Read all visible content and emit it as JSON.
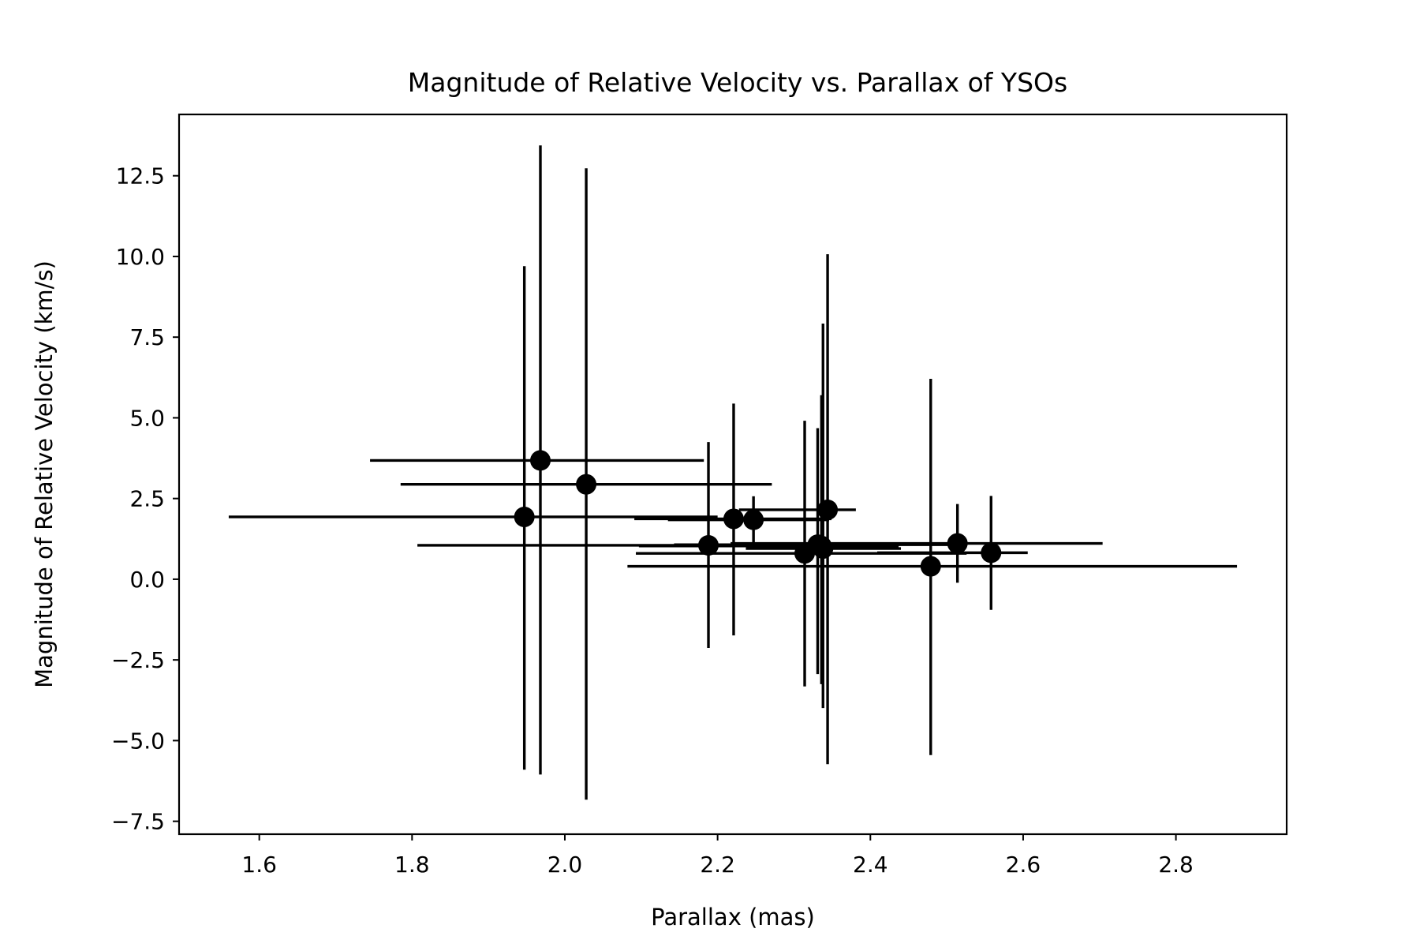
{
  "chart_data": {
    "type": "scatter",
    "title": "Magnitude of Relative Velocity vs. Parallax of YSOs",
    "xlabel": "Parallax (mas)",
    "ylabel": "Magnitude of Relative Velocity (km/s)",
    "xlim": [
      1.495,
      2.945
    ],
    "ylim": [
      -7.9,
      14.4
    ],
    "xticks": [
      1.6,
      1.8,
      2.0,
      2.2,
      2.4,
      2.6,
      2.8
    ],
    "xtick_labels": [
      "1.6",
      "1.8",
      "2.0",
      "2.2",
      "2.4",
      "2.6",
      "2.8"
    ],
    "yticks": [
      -7.5,
      -5.0,
      -2.5,
      0.0,
      2.5,
      5.0,
      7.5,
      10.0,
      12.5
    ],
    "ytick_labels": [
      "−7.5",
      "−5.0",
      "−2.5",
      "0.0",
      "2.5",
      "5.0",
      "7.5",
      "10.0",
      "12.5"
    ],
    "grid": false,
    "legend": "none",
    "marker_color": "#000000",
    "points": [
      {
        "x": 1.947,
        "y": 1.93,
        "xerr": [
          0.387,
          0.253
        ],
        "yerr": [
          7.83,
          7.77
        ]
      },
      {
        "x": 1.968,
        "y": 3.68,
        "xerr": [
          0.223,
          0.214
        ],
        "yerr": [
          9.73,
          9.76
        ]
      },
      {
        "x": 2.028,
        "y": 2.94,
        "xerr": [
          0.243,
          0.243
        ],
        "yerr": [
          9.77,
          9.79
        ]
      },
      {
        "x": 2.188,
        "y": 1.05,
        "xerr": [
          0.381,
          0.238
        ],
        "yerr": [
          3.18,
          3.2
        ]
      },
      {
        "x": 2.221,
        "y": 1.87,
        "xerr": [
          0.13,
          0.128
        ],
        "yerr": [
          3.61,
          3.57
        ]
      },
      {
        "x": 2.247,
        "y": 1.84,
        "xerr": [
          0.112,
          0.099
        ],
        "yerr": [
          0.73,
          0.73
        ]
      },
      {
        "x": 2.314,
        "y": 0.8,
        "xerr": [
          0.221,
          0.212
        ],
        "yerr": [
          4.12,
          4.11
        ]
      },
      {
        "x": 2.331,
        "y": 1.07,
        "xerr": [
          0.188,
          0.186
        ],
        "yerr": [
          4.01,
          3.61
        ]
      },
      {
        "x": 2.336,
        "y": 1.03,
        "xerr": [
          0.239,
          0.101
        ],
        "yerr": [
          4.28,
          4.67
        ]
      },
      {
        "x": 2.338,
        "y": 0.95,
        "xerr": [
          0.101,
          0.102
        ],
        "yerr": [
          4.94,
          6.97
        ]
      },
      {
        "x": 2.344,
        "y": 2.15,
        "xerr": [
          0.116,
          0.037
        ],
        "yerr": [
          7.88,
          7.92
        ]
      },
      {
        "x": 2.479,
        "y": 0.4,
        "xerr": [
          0.397,
          0.401
        ],
        "yerr": [
          5.85,
          5.81
        ]
      },
      {
        "x": 2.514,
        "y": 1.11,
        "xerr": [
          0.297,
          0.19
        ],
        "yerr": [
          1.22,
          1.22
        ]
      },
      {
        "x": 2.558,
        "y": 0.82,
        "xerr": [
          0.149,
          0.048
        ],
        "yerr": [
          1.77,
          1.76
        ]
      }
    ]
  }
}
